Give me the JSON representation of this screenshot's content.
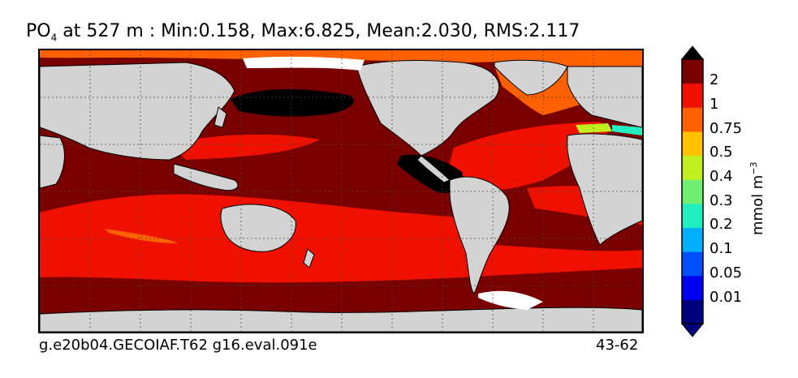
{
  "title": {
    "variable": "PO",
    "subscript": "4",
    "rest": " at 527 m : Min:0.158, Max:6.825, Mean:2.030, RMS:2.117"
  },
  "footer": {
    "left": "g.e20b04.GECOIAF.T62 g16.eval.091e",
    "right": "43-62"
  },
  "colorbar": {
    "units_main": "mmol m",
    "units_exp": "−3",
    "tick_labels": [
      "2",
      "1",
      "0.75",
      "0.5",
      "0.4",
      "0.3",
      "0.2",
      "0.1",
      "0.05",
      "0.01"
    ],
    "level_colors": [
      "#00007f",
      "#0000f0",
      "#0050ff",
      "#00b0ff",
      "#20f0c0",
      "#70f070",
      "#c0f020",
      "#ffc000",
      "#ff6000",
      "#f01000",
      "#7a0000"
    ],
    "under_color": "#00007f",
    "over_color": "#000000"
  },
  "map": {
    "land_color": "#d3d3d3",
    "ice_color": "#ffffff",
    "projection": "global cylindrical",
    "gridlines": "dotted"
  }
}
